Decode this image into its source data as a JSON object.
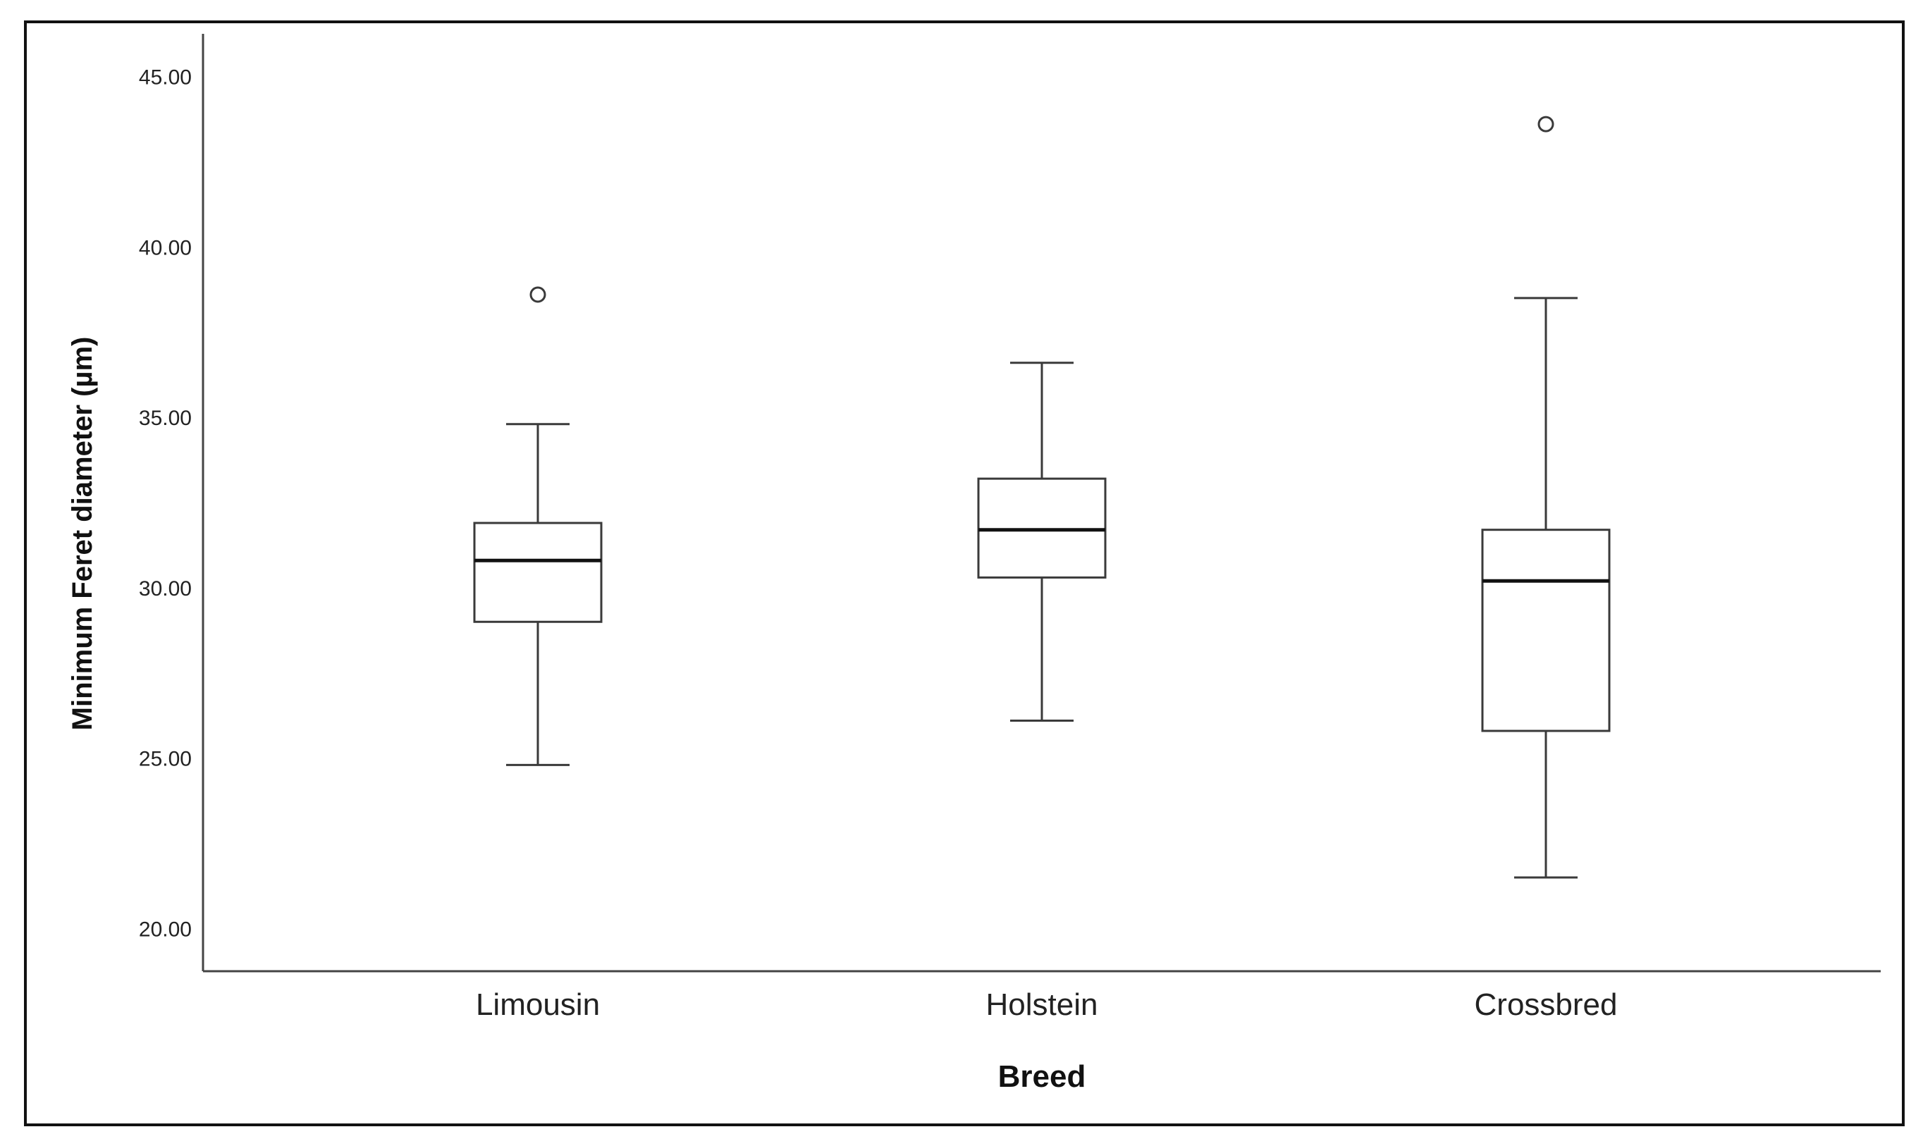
{
  "chart_data": {
    "type": "box",
    "title": "",
    "xlabel": "Breed",
    "ylabel": "Minimum Feret diameter (µm)",
    "ylim": [
      18.75,
      46.25
    ],
    "yticks": [
      20,
      25,
      30,
      35,
      40,
      45
    ],
    "ytick_labels": [
      "20.00",
      "25.00",
      "30.00",
      "35.00",
      "40.00",
      "45.00"
    ],
    "grid": false,
    "categories": [
      "Limousin",
      "Holstein",
      "Crossbred"
    ],
    "boxes": [
      {
        "category": "Limousin",
        "whisker_low": 24.8,
        "q1": 29.0,
        "median": 30.8,
        "q3": 31.9,
        "whisker_high": 34.8,
        "outliers": [
          38.6
        ]
      },
      {
        "category": "Holstein",
        "whisker_low": 26.1,
        "q1": 30.3,
        "median": 31.7,
        "q3": 33.2,
        "whisker_high": 36.6,
        "outliers": []
      },
      {
        "category": "Crossbred",
        "whisker_low": 21.5,
        "q1": 25.8,
        "median": 30.2,
        "q3": 31.7,
        "whisker_high": 38.5,
        "outliers": [
          43.6
        ]
      }
    ]
  }
}
